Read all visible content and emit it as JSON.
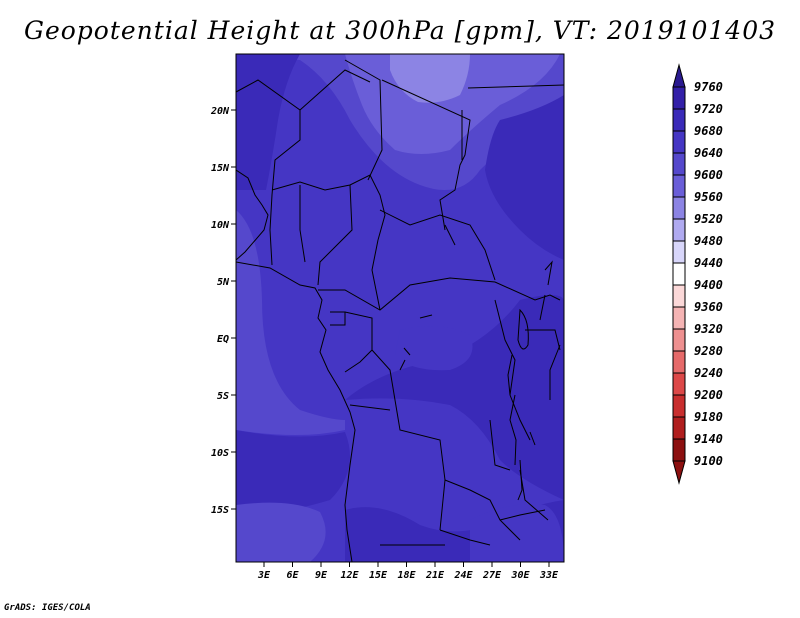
{
  "title": "Geopotential Height at 300hPa [gpm], VT: 2019101403",
  "credit": "GrADS: IGES/COLA",
  "map": {
    "lat_labels": [
      "20N",
      "15N",
      "10N",
      "5N",
      "EQ",
      "5S",
      "10S",
      "15S"
    ],
    "lon_labels": [
      "3E",
      "6E",
      "9E",
      "12E",
      "15E",
      "18E",
      "21E",
      "24E",
      "27E",
      "30E",
      "33E"
    ]
  },
  "colorbar": {
    "levels": [
      "9760",
      "9720",
      "9680",
      "9640",
      "9600",
      "9560",
      "9520",
      "9480",
      "9440",
      "9400",
      "9360",
      "9320",
      "9280",
      "9240",
      "9200",
      "9180",
      "9140",
      "9100"
    ],
    "colors": [
      "#2a1a90",
      "#3320a8",
      "#3a2ab8",
      "#4536c4",
      "#5548cc",
      "#6a5ed8",
      "#8c84e4",
      "#b0aaf0",
      "#d8d6fa",
      "#ffffff",
      "#fbd8d8",
      "#f5b4b4",
      "#ee9090",
      "#e66a6a",
      "#dc4848",
      "#c82e2e",
      "#b01e1e",
      "#8c1010"
    ]
  },
  "fill_colors": {
    "c9680": "#3a2ab8",
    "c9640": "#4536c4",
    "c9600": "#5548cc",
    "c9560": "#6a5ed8",
    "c9520": "#8c84e4"
  }
}
